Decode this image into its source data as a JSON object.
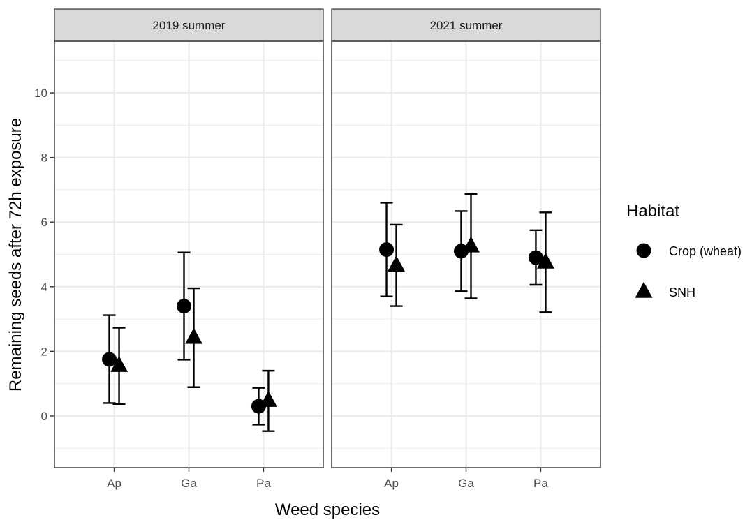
{
  "chart_data": {
    "type": "scatter",
    "xlabel": "Weed species",
    "ylabel": "Remaining seeds after 72h exposure",
    "categories": [
      "Ap",
      "Ga",
      "Pa"
    ],
    "ylim": [
      -1.6,
      11.6
    ],
    "yticks": [
      0,
      2,
      4,
      6,
      8,
      10
    ],
    "grid": true,
    "legend": {
      "title": "Habitat",
      "placement": "right",
      "entries": [
        {
          "label": "Crop (wheat)",
          "shape": "circle"
        },
        {
          "label": "SNH",
          "shape": "triangle"
        }
      ]
    },
    "colors": {
      "marker": "#000000",
      "strip_fill": "#d9d9d9",
      "grid": "#ebebeb",
      "panel_border": "#333333"
    },
    "panels": [
      {
        "strip": "2019 summer",
        "series": [
          {
            "habitat": "Crop (wheat)",
            "shape": "circle",
            "points": [
              {
                "x": "Ap",
                "y": 1.75,
                "lo": 0.4,
                "hi": 3.12
              },
              {
                "x": "Ga",
                "y": 3.4,
                "lo": 1.74,
                "hi": 5.06
              },
              {
                "x": "Pa",
                "y": 0.3,
                "lo": -0.27,
                "hi": 0.87
              }
            ]
          },
          {
            "habitat": "SNH",
            "shape": "triangle",
            "points": [
              {
                "x": "Ap",
                "y": 1.55,
                "lo": 0.37,
                "hi": 2.73
              },
              {
                "x": "Ga",
                "y": 2.42,
                "lo": 0.89,
                "hi": 3.95
              },
              {
                "x": "Pa",
                "y": 0.47,
                "lo": -0.47,
                "hi": 1.4
              }
            ]
          }
        ]
      },
      {
        "strip": "2021 summer",
        "series": [
          {
            "habitat": "Crop (wheat)",
            "shape": "circle",
            "points": [
              {
                "x": "Ap",
                "y": 5.15,
                "lo": 3.7,
                "hi": 6.6
              },
              {
                "x": "Ga",
                "y": 5.1,
                "lo": 3.86,
                "hi": 6.34
              },
              {
                "x": "Pa",
                "y": 4.9,
                "lo": 4.06,
                "hi": 5.75
              }
            ]
          },
          {
            "habitat": "SNH",
            "shape": "triangle",
            "points": [
              {
                "x": "Ap",
                "y": 4.66,
                "lo": 3.4,
                "hi": 5.92
              },
              {
                "x": "Ga",
                "y": 5.25,
                "lo": 3.64,
                "hi": 6.87
              },
              {
                "x": "Pa",
                "y": 4.75,
                "lo": 3.21,
                "hi": 6.3
              }
            ]
          }
        ]
      }
    ]
  }
}
